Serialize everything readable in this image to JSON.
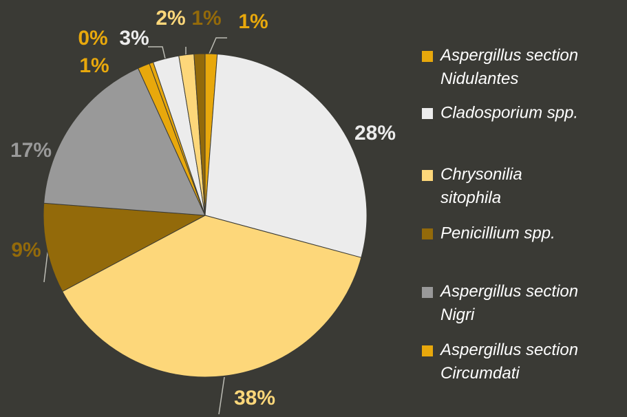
{
  "chart_data": {
    "type": "pie",
    "categories": [
      "Aspergillus section Nidulantes",
      "Cladosporium spp.",
      "Chrysonilia sitophila",
      "Penicillium spp.",
      "Aspergillus section Nigri",
      "Aspergillus section Circumdati",
      null,
      null,
      null,
      null
    ],
    "values": [
      1.2,
      28,
      38,
      9,
      17,
      1.2,
      0.4,
      2.6,
      1.5,
      1.1
    ],
    "value_labels": [
      "1%",
      "28%",
      "38%",
      "9%",
      "17%",
      "1%",
      "0%",
      "3%",
      "2%",
      "1%"
    ],
    "colors": [
      "#e8a80c",
      "#ececec",
      "#fdd77a",
      "#936a0a",
      "#999999",
      "#e8a80c",
      "#e8a80c",
      "#ececec",
      "#fdd77a",
      "#936a0a"
    ]
  }
}
